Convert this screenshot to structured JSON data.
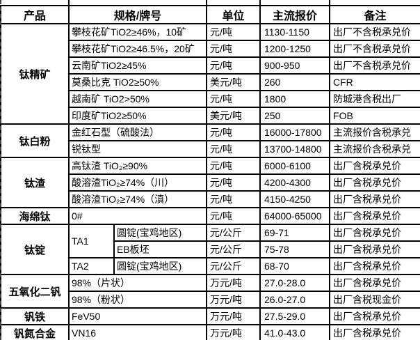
{
  "header": {
    "columns": [
      "产品",
      "规格/牌号",
      "单位",
      "主流报价",
      "备注"
    ]
  },
  "groups": [
    {
      "product": "钛精矿",
      "rows": [
        {
          "spec": "攀枝花矿TiO2≥46%，10矿",
          "unit": "元/吨",
          "price": "1130-1150",
          "note": "出厂不含税承兑价"
        },
        {
          "spec": "攀枝花矿TiO2≥46.5%，20矿",
          "unit": "元/吨",
          "price": "1200-1250",
          "note": "出厂不含税承兑价"
        },
        {
          "spec": "云南矿TiO2≥45%",
          "unit": "元/吨",
          "price": "900-950",
          "note": "出厂不含税承兑价"
        },
        {
          "spec": "莫桑比克 TiO2≥50%",
          "unit": "美元/吨",
          "price": "260",
          "note": "CFR"
        },
        {
          "spec": "越南矿 TiO2>50%",
          "unit": "元/吨",
          "price": "1800",
          "note": "防城港含税出厂"
        },
        {
          "spec": "印度矿TiO2≥50%",
          "unit": "美元/吨",
          "price": "250",
          "note": "FOB"
        }
      ]
    },
    {
      "product": "钛白粉",
      "rows": [
        {
          "spec": "金红石型（硫酸法）",
          "unit": "元/吨",
          "price": "16000-17800",
          "note": "主流报价含税承兑"
        },
        {
          "spec": "锐钛型",
          "unit": "元/吨",
          "price": "13700-14800",
          "note": "主流报价含税承兑"
        }
      ]
    },
    {
      "product": "钛渣",
      "rows": [
        {
          "spec": "高钛渣 TiO₂≥90%",
          "unit": "元/吨",
          "price": "6000-6100",
          "note": "出厂含税承兑价"
        },
        {
          "spec": "酸溶渣TiO₂≥74%（川）",
          "unit": "元/吨",
          "price": "4200-4300",
          "note": "出厂含税承兑价"
        },
        {
          "spec": "酸溶渣TiO₂≥74%（滇）",
          "unit": "元/吨",
          "price": "4150-4250",
          "note": "出厂含税承兑价"
        }
      ]
    },
    {
      "product": "海绵钛",
      "rows": [
        {
          "spec": "0#",
          "unit": "元/吨",
          "price": "64000-65000",
          "note": "出厂含税承兑价"
        }
      ]
    },
    {
      "product": "钛锭",
      "rows": [
        {
          "grade": "TA1",
          "grade_rows": 2,
          "sub": true,
          "spec": "圆锭(宝鸡地区)",
          "unit": "元/公斤",
          "price": "69-71",
          "note": "出厂含税承兑价"
        },
        {
          "sub": true,
          "spec": "EB板坯",
          "unit": "元/公斤",
          "price": "75-78",
          "note": "出厂含税承兑价"
        },
        {
          "grade": "TA2",
          "grade_rows": 1,
          "sub": true,
          "spec": "圆锭(宝鸡地区)",
          "unit": "元/公斤",
          "price": "68-70",
          "note": "出厂含税承兑价"
        }
      ]
    },
    {
      "product": "五氧化二钒",
      "rows": [
        {
          "spec": "98%（片状）",
          "unit": "万元/吨",
          "price": "27.0-28.0",
          "note": "出厂含税承兑价"
        },
        {
          "spec": "98%（粉状）",
          "unit": "万元/吨",
          "price": "26.0-27.0",
          "note": "出厂含税现金价"
        }
      ]
    },
    {
      "product": "钒铁",
      "rows": [
        {
          "spec": "FeV50",
          "unit": "万元/吨",
          "price": "27.5-29.0",
          "note": "出厂含税承兑价"
        }
      ]
    },
    {
      "product": "钒氮合金",
      "rows": [
        {
          "spec": "VN16",
          "unit": "万元/吨",
          "price": "41.0-43.0",
          "note": "出厂含税承兑价"
        }
      ]
    }
  ],
  "layout_artifacts": {
    "column_stub_positions": [
      98,
      296,
      373,
      473
    ],
    "bottom_stub_positions": [
      373,
      473
    ]
  }
}
